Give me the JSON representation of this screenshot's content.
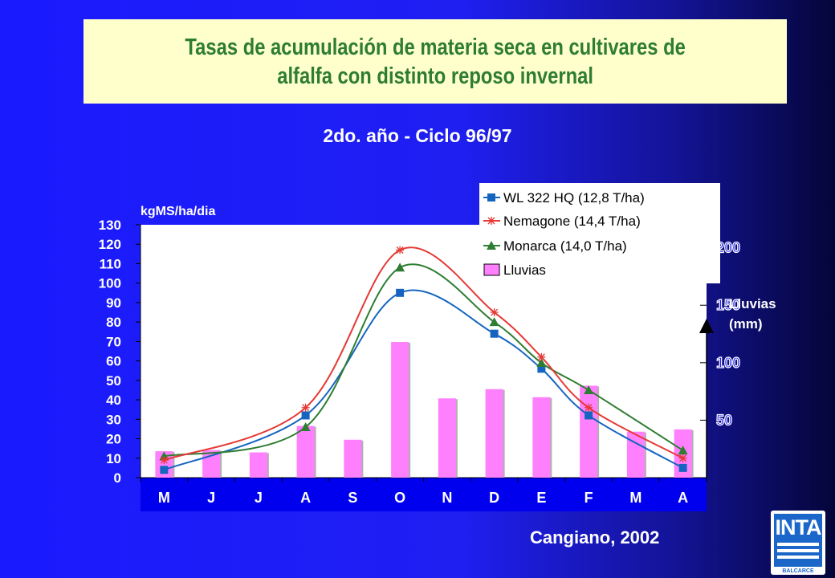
{
  "slide": {
    "title_line1": "Tasas de acumulación de materia seca en cultivares de",
    "title_line2": "alfalfa con distinto reposo invernal",
    "subtitle": "2do. año - Ciclo 96/97",
    "source": "Cangiano, 2002",
    "logo_text": "INTA",
    "logo_sub": "BALCARCE"
  },
  "chart_data": {
    "type": "line",
    "categories": [
      "M",
      "J",
      "J",
      "A",
      "S",
      "O",
      "N",
      "D",
      "E",
      "F",
      "M",
      "A"
    ],
    "ylabel": "kgMS/ha/dia",
    "y2label_line1": "Lluvias",
    "y2label_line2": "(mm)",
    "ylim": [
      0,
      130
    ],
    "yticks": [
      0,
      10,
      20,
      30,
      40,
      50,
      60,
      70,
      80,
      90,
      100,
      110,
      120,
      130
    ],
    "y2lim": [
      0,
      220
    ],
    "y2ticks": [
      50,
      100,
      150,
      200
    ],
    "grid": false,
    "legend_position": "top-right",
    "series": [
      {
        "name": "WL 322 HQ (12,8 T/ha)",
        "type": "line",
        "marker": "square",
        "color": "#1565c0",
        "values": [
          4,
          null,
          null,
          32,
          null,
          95,
          null,
          74,
          56,
          32,
          null,
          5
        ]
      },
      {
        "name": "Nemagone (14,4 T/ha)",
        "type": "line",
        "marker": "asterisk",
        "color": "#e53935",
        "values": [
          9,
          null,
          null,
          36,
          null,
          117,
          null,
          85,
          62,
          36,
          null,
          10
        ]
      },
      {
        "name": "Monarca (14,0 T/ha)",
        "type": "line",
        "marker": "triangle",
        "color": "#2e7d32",
        "values": [
          11,
          null,
          null,
          26,
          null,
          108,
          null,
          80,
          59,
          45,
          null,
          14
        ]
      },
      {
        "name": "Lluvias",
        "type": "bar",
        "axis": "right",
        "color": "#ff80ff",
        "values": [
          23,
          24,
          22,
          45,
          33,
          118,
          69,
          77,
          70,
          80,
          40,
          42
        ]
      }
    ]
  }
}
